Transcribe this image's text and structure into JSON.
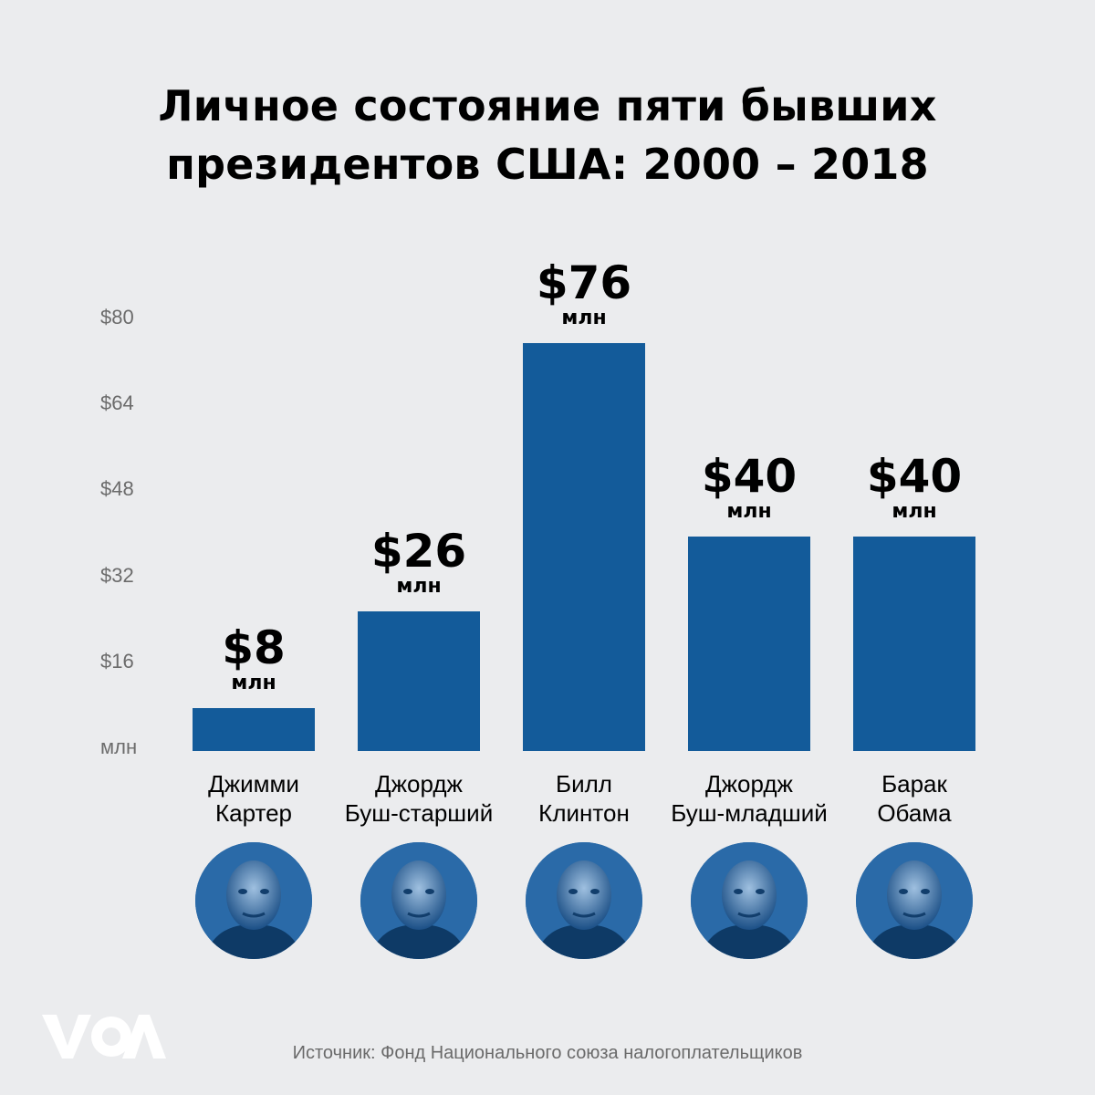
{
  "title_lines": [
    "Личное состояние пяти бывших",
    "президентов США: 2000 – 2018"
  ],
  "source": "Источник: Фонд Национального союза налогоплательщиков",
  "logo_text": "VOA",
  "colors": {
    "background": "#ebecee",
    "bar": "#135b9a",
    "tick": "#6b6b6b"
  },
  "chart_data": {
    "type": "bar",
    "title": "Личное состояние пяти бывших президентов США: 2000 – 2018",
    "categories": [
      "Джимми Картер",
      "Джордж Буш-старший",
      "Билл Клинтон",
      "Джордж Буш-младший",
      "Барак Обама"
    ],
    "category_lines": [
      [
        "Джимми",
        "Картер"
      ],
      [
        "Джордж",
        "Буш-старший"
      ],
      [
        "Билл",
        "Клинтон"
      ],
      [
        "Джордж",
        "Буш-младший"
      ],
      [
        "Барак",
        "Обама"
      ]
    ],
    "values": [
      8,
      26,
      76,
      40,
      40
    ],
    "value_labels": [
      "$8",
      "$26",
      "$76",
      "$40",
      "$40"
    ],
    "value_unit": "млн",
    "y_ticks": [
      "млн",
      "$16",
      "$32",
      "$48",
      "$64",
      "$80"
    ],
    "ylim": [
      0,
      80
    ],
    "grid": false,
    "legend": "none"
  }
}
